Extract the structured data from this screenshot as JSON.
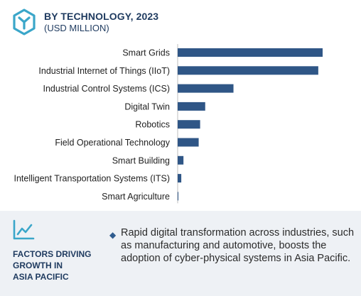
{
  "header": {
    "title": "BY TECHNOLOGY, 2023",
    "subtitle": "(USD MILLION)",
    "logo_icon": "hexagon-y-logo-icon"
  },
  "chart_data": {
    "type": "bar",
    "orientation": "horizontal",
    "title": "BY TECHNOLOGY, 2023",
    "subtitle": "(USD MILLION)",
    "categories": [
      "Smart Grids",
      "Industrial Internet of Things (IIoT)",
      "Industrial Control Systems (ICS)",
      "Digital Twin",
      "Robotics",
      "Field Operational Technology",
      "Smart Building",
      "Intelligent Transportation Systems (ITS)",
      "Smart Agriculture"
    ],
    "values": [
      100,
      97,
      38.5,
      19,
      15.5,
      14.5,
      4,
      2.5,
      0.5
    ],
    "bar_color": "#2f5686",
    "grid": false,
    "legend": "none"
  },
  "factors": {
    "icon": "line-trend-icon",
    "title_lines": [
      "FACTORS DRIVING",
      "GROWTH IN",
      "ASIA PACIFIC"
    ],
    "bullet": "Rapid digital transformation across industries, such as manufacturing and automotive, boosts the adoption of cyber-physical systems in Asia Pacific."
  },
  "colors": {
    "accent": "#1e3a5f",
    "panel_bg": "#eef1f5"
  }
}
